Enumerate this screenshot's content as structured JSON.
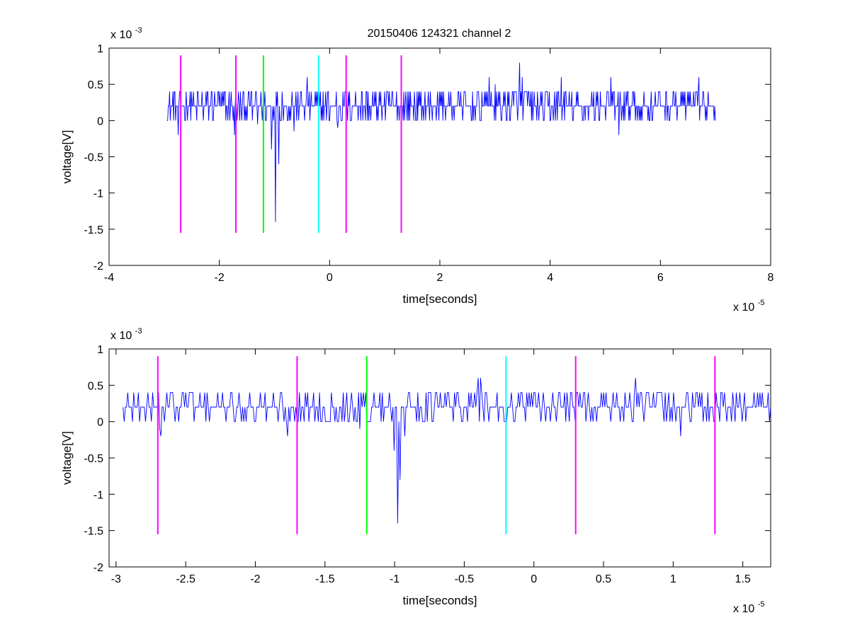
{
  "figure": {
    "title": "20150406 124321 channel 2",
    "background": "#ffffff"
  },
  "chart_data": [
    {
      "type": "line",
      "title": "20150406 124321 channel 2",
      "xlabel": "time[seconds]",
      "ylabel": "voltage[V]",
      "x_exponent_label": "x 10",
      "x_exponent": "-5",
      "y_exponent_label": "x 10",
      "y_exponent": "-3",
      "x_unit_scale": 1e-05,
      "y_unit_scale": 0.001,
      "xlim": [
        -4,
        8
      ],
      "ylim": [
        -2,
        1
      ],
      "xticks": [
        -4,
        -2,
        0,
        2,
        4,
        6,
        8
      ],
      "xtick_labels": [
        "-4",
        "-2",
        "0",
        "2",
        "4",
        "6",
        "8"
      ],
      "yticks": [
        -2,
        -1.5,
        -1,
        -0.5,
        0,
        0.5,
        1
      ],
      "ytick_labels": [
        "-2",
        "-1.5",
        "-1",
        "-0.5",
        "0",
        "0.5",
        "1"
      ],
      "grid": false,
      "signal": {
        "color": "#0000ff",
        "x_range": [
          -2.95,
          7.0
        ],
        "baseline": 0.2,
        "levels": [
          0,
          0.2,
          0.4
        ],
        "spikes": [
          {
            "x": -2.75,
            "y": -0.2
          },
          {
            "x": -1.72,
            "y": -0.2
          },
          {
            "x": -1.3,
            "y": -0.05
          },
          {
            "x": -1.05,
            "y": -0.4
          },
          {
            "x": -0.98,
            "y": -1.4
          },
          {
            "x": -0.92,
            "y": -0.6
          },
          {
            "x": -0.65,
            "y": -0.15
          },
          {
            "x": -0.4,
            "y": 0.6
          },
          {
            "x": 0.15,
            "y": -0.1
          },
          {
            "x": 2.9,
            "y": 0.6
          },
          {
            "x": 3.0,
            "y": 0.5
          },
          {
            "x": 3.45,
            "y": 0.8
          },
          {
            "x": 3.5,
            "y": 0.6
          },
          {
            "x": 4.2,
            "y": 0.6
          },
          {
            "x": 5.1,
            "y": 0.6
          },
          {
            "x": 5.25,
            "y": -0.2
          },
          {
            "x": 6.7,
            "y": 0.6
          }
        ]
      },
      "markers": [
        {
          "x": -2.7,
          "color": "#ff00ff"
        },
        {
          "x": -1.7,
          "color": "#ff00ff"
        },
        {
          "x": -1.2,
          "color": "#00ff00"
        },
        {
          "x": -0.2,
          "color": "#00ffff"
        },
        {
          "x": 0.3,
          "color": "#ff00ff"
        },
        {
          "x": 1.3,
          "color": "#ff00ff"
        }
      ],
      "marker_y_range": [
        -1.55,
        0.9
      ]
    },
    {
      "type": "line",
      "title": "",
      "xlabel": "time[seconds]",
      "ylabel": "voltage[V]",
      "x_exponent_label": "x 10",
      "x_exponent": "-5",
      "y_exponent_label": "x 10",
      "y_exponent": "-3",
      "x_unit_scale": 1e-05,
      "y_unit_scale": 0.001,
      "xlim": [
        -3.05,
        1.7
      ],
      "ylim": [
        -2,
        1
      ],
      "xticks": [
        -3,
        -2.5,
        -2,
        -1.5,
        -1,
        -0.5,
        0,
        0.5,
        1,
        1.5
      ],
      "xtick_labels": [
        "-3",
        "-2.5",
        "-2",
        "-1.5",
        "-1",
        "-0.5",
        "0",
        "0.5",
        "1",
        "1.5"
      ],
      "yticks": [
        -2,
        -1.5,
        -1,
        -0.5,
        0,
        0.5,
        1
      ],
      "ytick_labels": [
        "-2",
        "-1.5",
        "-1",
        "-0.5",
        "0",
        "0.5",
        "1"
      ],
      "grid": false,
      "signal": {
        "color": "#0000ff",
        "x_range": [
          -2.95,
          1.7
        ],
        "baseline": 0.2,
        "levels": [
          0,
          0.2,
          0.4
        ],
        "spikes": [
          {
            "x": -2.69,
            "y": -0.1
          },
          {
            "x": -2.68,
            "y": -0.2
          },
          {
            "x": -1.77,
            "y": -0.2
          },
          {
            "x": -1.25,
            "y": -0.1
          },
          {
            "x": -1.0,
            "y": -0.4
          },
          {
            "x": -0.98,
            "y": -1.4
          },
          {
            "x": -0.96,
            "y": -0.8
          },
          {
            "x": -0.93,
            "y": -0.2
          },
          {
            "x": -0.4,
            "y": 0.6
          },
          {
            "x": -0.38,
            "y": 0.6
          },
          {
            "x": 0.73,
            "y": 0.6
          },
          {
            "x": 1.05,
            "y": -0.2
          }
        ]
      },
      "markers": [
        {
          "x": -2.7,
          "color": "#ff00ff"
        },
        {
          "x": -1.7,
          "color": "#ff00ff"
        },
        {
          "x": -1.2,
          "color": "#00ff00"
        },
        {
          "x": -0.2,
          "color": "#00ffff"
        },
        {
          "x": 0.3,
          "color": "#ff00ff"
        },
        {
          "x": 1.3,
          "color": "#ff00ff"
        }
      ],
      "marker_y_range": [
        -1.55,
        0.9
      ]
    }
  ]
}
